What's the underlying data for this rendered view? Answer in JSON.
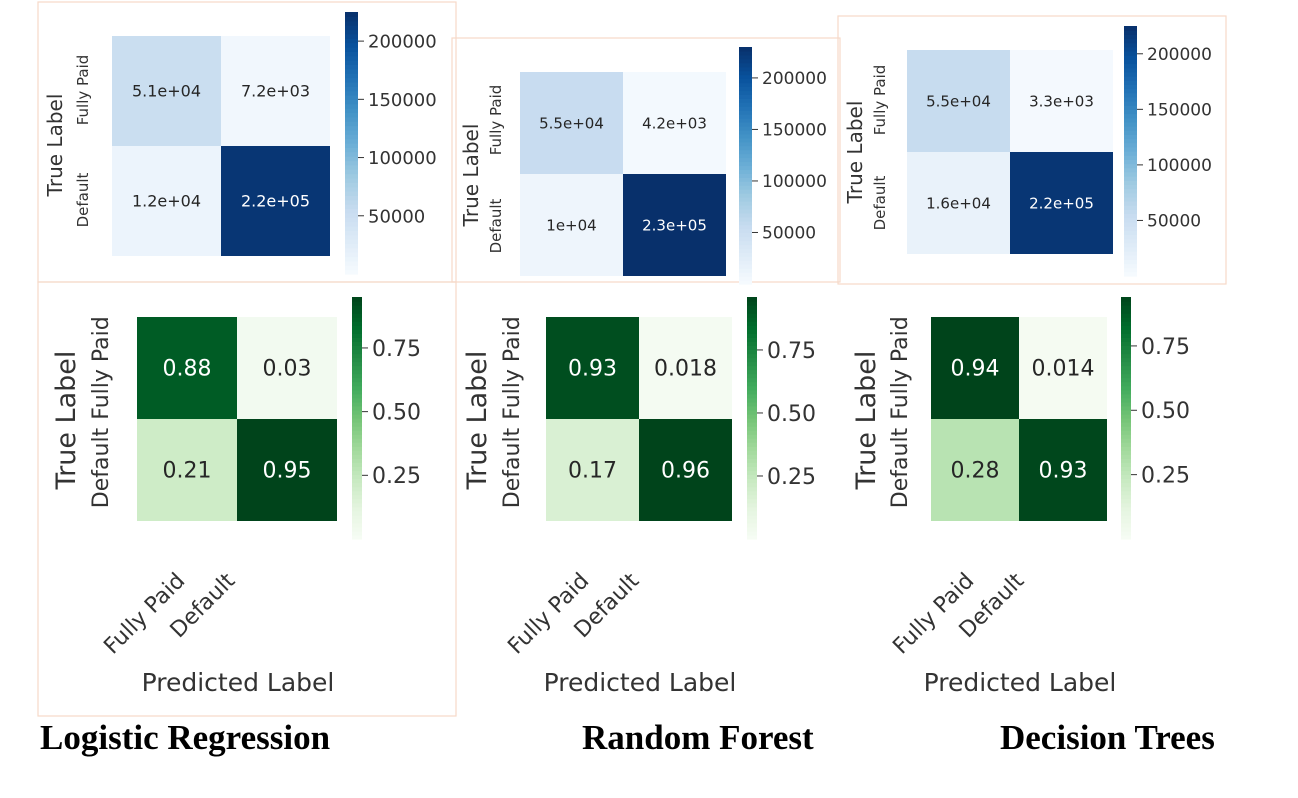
{
  "chart_data": [
    {
      "type": "heatmap",
      "model": "Logistic Regression",
      "cmap": "Blues",
      "xticklabels": [],
      "yticklabels": [
        "Fully Paid",
        "Default"
      ],
      "xlabel": "",
      "ylabel": "True Label",
      "values": [
        [
          51000,
          7200
        ],
        [
          12000,
          220000
        ]
      ],
      "annotations": [
        [
          "5.1e+04",
          "7.2e+03"
        ],
        [
          "1.2e+04",
          "2.2e+05"
        ]
      ],
      "colorbar": {
        "range": [
          0,
          225000
        ],
        "ticks": [
          50000,
          100000,
          150000,
          200000
        ],
        "ticklabels": [
          "50000",
          "100000",
          "150000",
          "200000"
        ]
      }
    },
    {
      "type": "heatmap",
      "model": "Random Forest",
      "cmap": "Blues",
      "xticklabels": [],
      "yticklabels": [
        "Fully Paid",
        "Default"
      ],
      "xlabel": "",
      "ylabel": "True Label",
      "values": [
        [
          55000,
          4200
        ],
        [
          10000,
          230000
        ]
      ],
      "annotations": [
        [
          "5.5e+04",
          "4.2e+03"
        ],
        [
          "1e+04",
          "2.3e+05"
        ]
      ],
      "colorbar": {
        "range": [
          0,
          230000
        ],
        "ticks": [
          50000,
          100000,
          150000,
          200000
        ],
        "ticklabels": [
          "50000",
          "100000",
          "150000",
          "200000"
        ]
      }
    },
    {
      "type": "heatmap",
      "model": "Decision Trees",
      "cmap": "Blues",
      "xticklabels": [],
      "yticklabels": [
        "Fully Paid",
        "Default"
      ],
      "xlabel": "",
      "ylabel": "True Label",
      "values": [
        [
          55000,
          3300
        ],
        [
          16000,
          220000
        ]
      ],
      "annotations": [
        [
          "5.5e+04",
          "3.3e+03"
        ],
        [
          "1.6e+04",
          "2.2e+05"
        ]
      ],
      "colorbar": {
        "range": [
          0,
          225000
        ],
        "ticks": [
          50000,
          100000,
          150000,
          200000
        ],
        "ticklabels": [
          "50000",
          "100000",
          "150000",
          "200000"
        ]
      }
    },
    {
      "type": "heatmap",
      "model": "Logistic Regression",
      "cmap": "Greens",
      "xticklabels": [
        "Fully Paid",
        "Default"
      ],
      "yticklabels": [
        "Fully Paid",
        "Default"
      ],
      "xlabel": "Predicted Label",
      "ylabel": "True Label",
      "values": [
        [
          0.88,
          0.03
        ],
        [
          0.21,
          0.95
        ]
      ],
      "annotations": [
        [
          "0.88",
          "0.03"
        ],
        [
          "0.21",
          "0.95"
        ]
      ],
      "colorbar": {
        "range": [
          0.0,
          0.95
        ],
        "ticks": [
          0.25,
          0.5,
          0.75
        ],
        "ticklabels": [
          "0.25",
          "0.50",
          "0.75"
        ]
      }
    },
    {
      "type": "heatmap",
      "model": "Random Forest",
      "cmap": "Greens",
      "xticklabels": [
        "Fully Paid",
        "Default"
      ],
      "yticklabels": [
        "Fully Paid",
        "Default"
      ],
      "xlabel": "Predicted Label",
      "ylabel": "True Label",
      "values": [
        [
          0.93,
          0.018
        ],
        [
          0.17,
          0.96
        ]
      ],
      "annotations": [
        [
          "0.93",
          "0.018"
        ],
        [
          "0.17",
          "0.96"
        ]
      ],
      "colorbar": {
        "range": [
          0.0,
          0.96
        ],
        "ticks": [
          0.25,
          0.5,
          0.75
        ],
        "ticklabels": [
          "0.25",
          "0.50",
          "0.75"
        ]
      }
    },
    {
      "type": "heatmap",
      "model": "Decision Trees",
      "cmap": "Greens",
      "xticklabels": [
        "Fully Paid",
        "Default"
      ],
      "yticklabels": [
        "Fully Paid",
        "Default"
      ],
      "xlabel": "Predicted Label",
      "ylabel": "True Label",
      "values": [
        [
          0.94,
          0.014
        ],
        [
          0.28,
          0.93
        ]
      ],
      "annotations": [
        [
          "0.94",
          "0.014"
        ],
        [
          "0.28",
          "0.93"
        ]
      ],
      "colorbar": {
        "range": [
          0.0,
          0.94
        ],
        "ticks": [
          0.25,
          0.5,
          0.75
        ],
        "ticklabels": [
          "0.25",
          "0.50",
          "0.75"
        ]
      }
    }
  ],
  "captions": [
    "Logistic Regression",
    "Random Forest",
    "Decision Trees"
  ],
  "colors": {
    "frame": "#f6d9c8",
    "blues": [
      "#f7fbff",
      "#deebf7",
      "#c6dbef",
      "#9ecae1",
      "#6baed6",
      "#4292c6",
      "#2171b5",
      "#08519c",
      "#08306b"
    ],
    "greens": [
      "#f7fcf5",
      "#e5f5e0",
      "#c7e9c0",
      "#a1d99b",
      "#74c476",
      "#41ab5d",
      "#238b45",
      "#006d2c",
      "#00441b"
    ],
    "dark_text": "#262626"
  }
}
